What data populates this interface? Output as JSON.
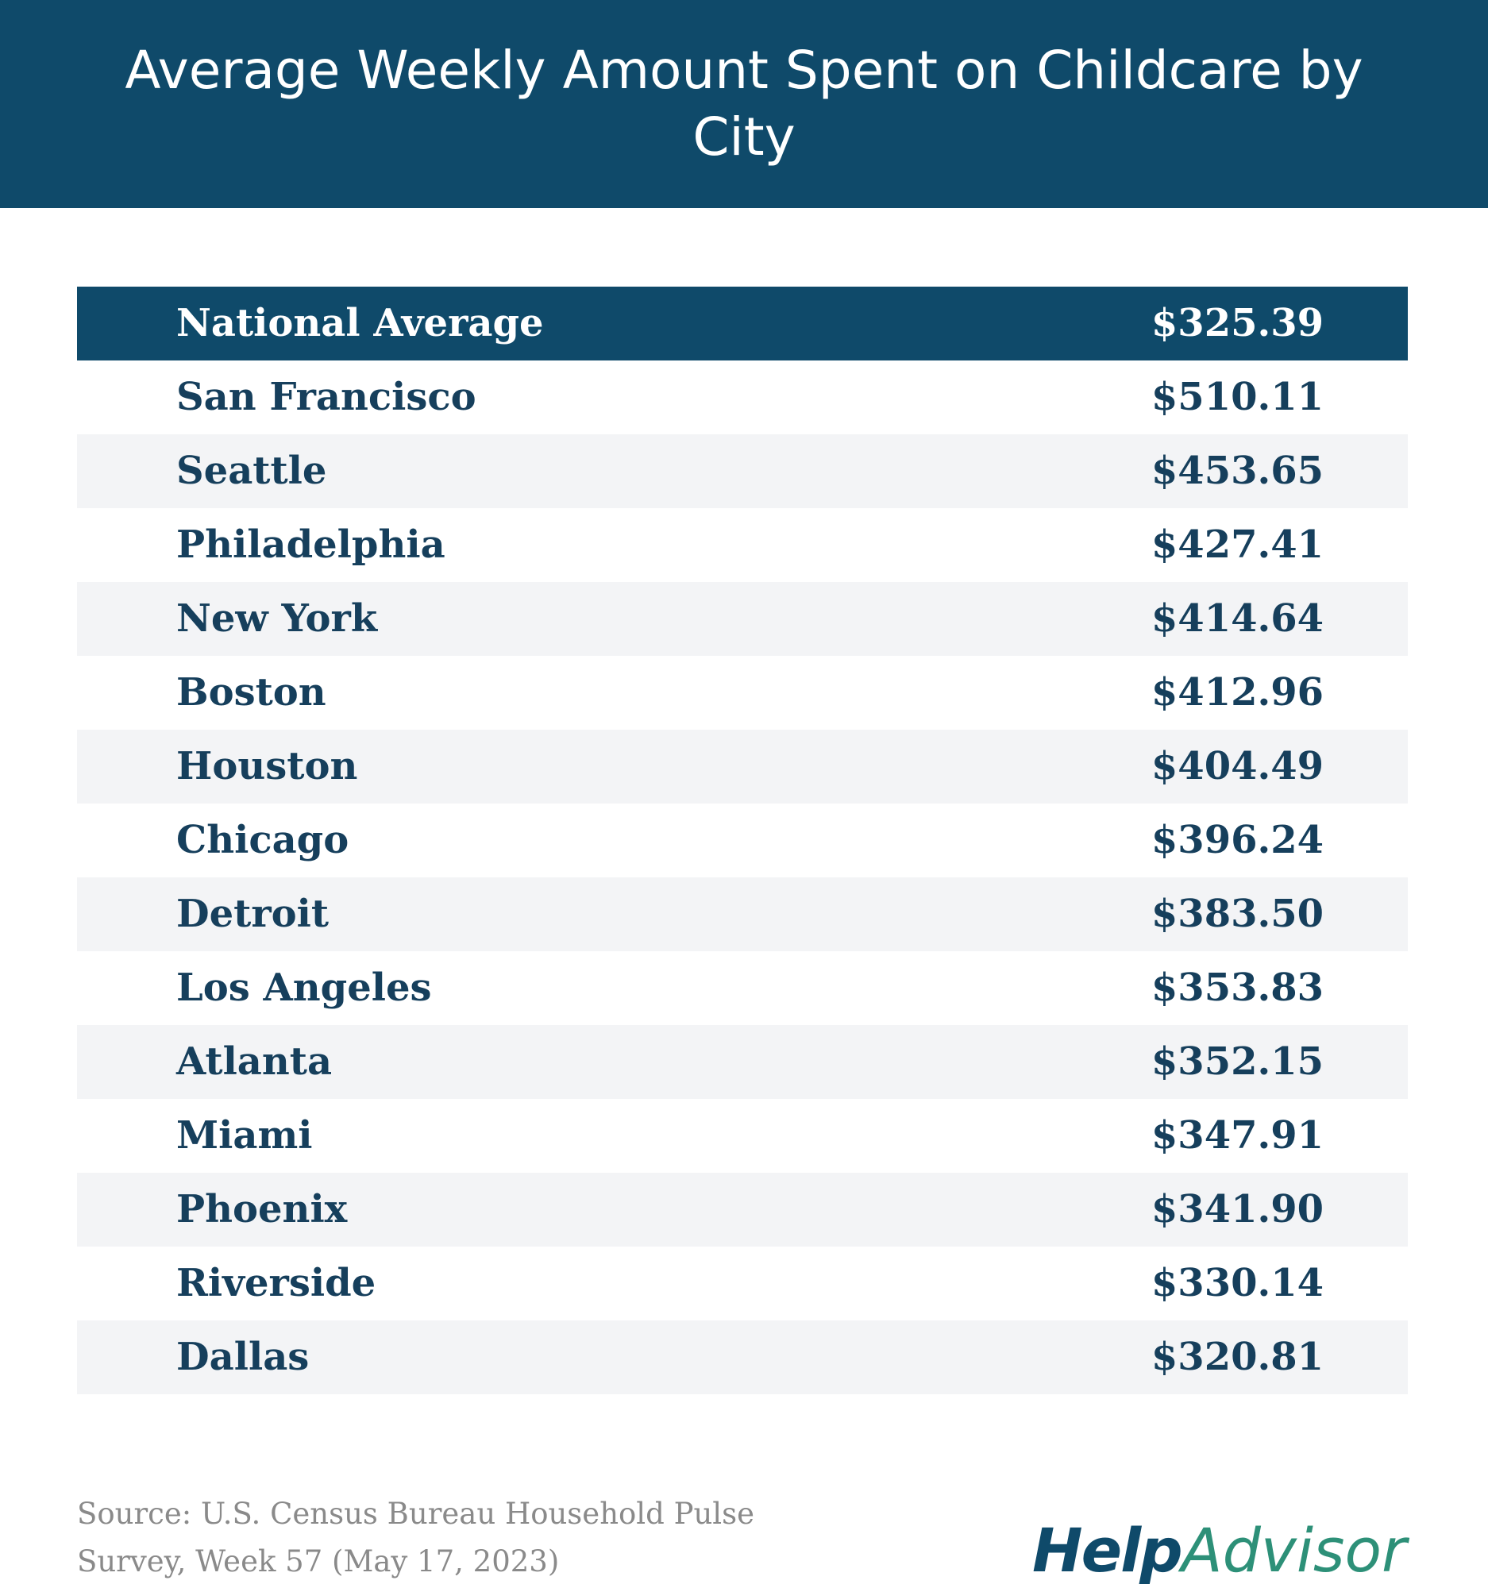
{
  "colors": {
    "header_bg": "#0f4a6a",
    "row_alt_bg": "#f3f4f6",
    "text_dark": "#163f5c",
    "source_gray": "#8a8a8a",
    "logo_help": "#0f4a6a",
    "logo_advisor": "#2d9078"
  },
  "title": "Average Weekly Amount Spent on Childcare by City",
  "chart_data": {
    "type": "table",
    "title": "Average Weekly Amount Spent on Childcare by City",
    "rows": [
      {
        "city": "National Average",
        "amount": "$325.39",
        "value": 325.39
      },
      {
        "city": "San Francisco",
        "amount": "$510.11",
        "value": 510.11
      },
      {
        "city": "Seattle",
        "amount": "$453.65",
        "value": 453.65
      },
      {
        "city": "Philadelphia",
        "amount": "$427.41",
        "value": 427.41
      },
      {
        "city": "New York",
        "amount": "$414.64",
        "value": 414.64
      },
      {
        "city": "Boston",
        "amount": "$412.96",
        "value": 412.96
      },
      {
        "city": "Houston",
        "amount": "$404.49",
        "value": 404.49
      },
      {
        "city": "Chicago",
        "amount": "$396.24",
        "value": 396.24
      },
      {
        "city": "Detroit",
        "amount": "$383.50",
        "value": 383.5
      },
      {
        "city": "Los Angeles",
        "amount": "$353.83",
        "value": 353.83
      },
      {
        "city": "Atlanta",
        "amount": "$352.15",
        "value": 352.15
      },
      {
        "city": "Miami",
        "amount": "$347.91",
        "value": 347.91
      },
      {
        "city": "Phoenix",
        "amount": "$341.90",
        "value": 341.9
      },
      {
        "city": "Riverside",
        "amount": "$330.14",
        "value": 330.14
      },
      {
        "city": "Dallas",
        "amount": "$320.81",
        "value": 320.81
      }
    ]
  },
  "source": {
    "line1": "Source: U.S. Census Bureau Household Pulse",
    "line2": "Survey, Week 57 (May 17, 2023)"
  },
  "logo": {
    "help": "Help",
    "advisor": "Advisor"
  }
}
